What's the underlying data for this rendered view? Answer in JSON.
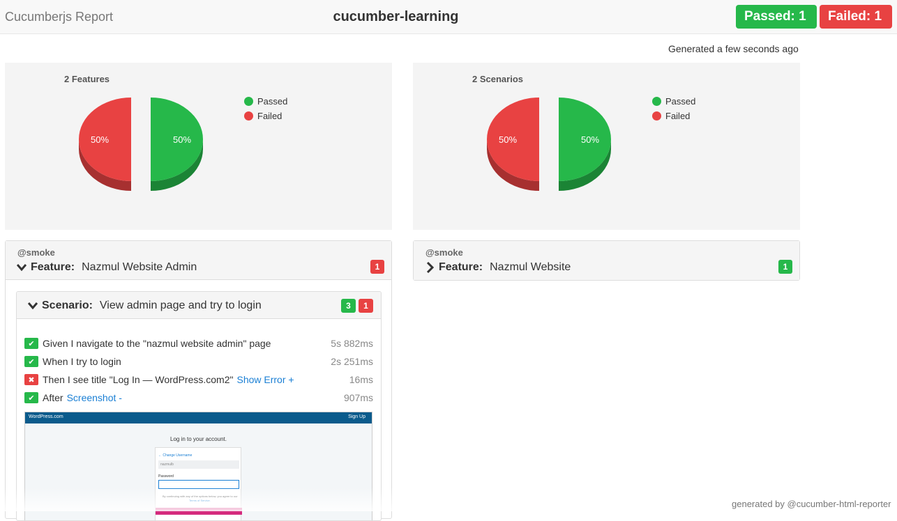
{
  "header": {
    "brand": "Cucumberjs Report",
    "project": "cucumber-learning",
    "passed_badge": "Passed: 1",
    "failed_badge": "Failed: 1"
  },
  "generated": "Generated a few seconds ago",
  "colors": {
    "passed": "#26b84a",
    "failed": "#e84242"
  },
  "chart_data": [
    {
      "type": "pie",
      "title": "2 Features",
      "categories": [
        "Passed",
        "Failed"
      ],
      "values": [
        50,
        50
      ],
      "labels": [
        "50%",
        "50%"
      ],
      "legend": "top-right"
    },
    {
      "type": "pie",
      "title": "2 Scenarios",
      "categories": [
        "Passed",
        "Failed"
      ],
      "values": [
        50,
        50
      ],
      "labels": [
        "50%",
        "50%"
      ],
      "legend": "top-right"
    }
  ],
  "legend": {
    "passed": "Passed",
    "failed": "Failed"
  },
  "features": [
    {
      "tag": "@smoke",
      "keyword": "Feature:",
      "name": "Nazmul Website Admin",
      "failed_count": "1",
      "scenario": {
        "keyword": "Scenario:",
        "name": "View admin page and try to login",
        "passed_count": "3",
        "failed_count": "1",
        "steps": [
          {
            "keyword": "Given",
            "text": "I navigate to the \"nazmul website admin\" page",
            "duration": "5s 882ms",
            "status": "passed",
            "link": ""
          },
          {
            "keyword": "When",
            "text": "I try to login",
            "duration": "2s 251ms",
            "status": "passed",
            "link": ""
          },
          {
            "keyword": "Then",
            "text": "I see title \"Log In — WordPress.com2\"",
            "duration": "16ms",
            "status": "failed",
            "link": "Show Error +"
          },
          {
            "keyword": "After",
            "text": "",
            "duration": "907ms",
            "status": "passed",
            "link": "Screenshot -"
          }
        ],
        "screenshot": {
          "logo": "WordPress.com",
          "sign_up": "Sign Up",
          "heading": "Log in to your account.",
          "change_username": "← Change Username",
          "username": "nazmulb",
          "password_label": "Password",
          "terms_line": "By continuing with any of the options below, you agree to our",
          "terms_link": "Terms of Service."
        }
      }
    },
    {
      "tag": "@smoke",
      "keyword": "Feature:",
      "name": "Nazmul Website",
      "passed_count": "1"
    }
  ],
  "footer": "generated by @cucumber-html-reporter"
}
